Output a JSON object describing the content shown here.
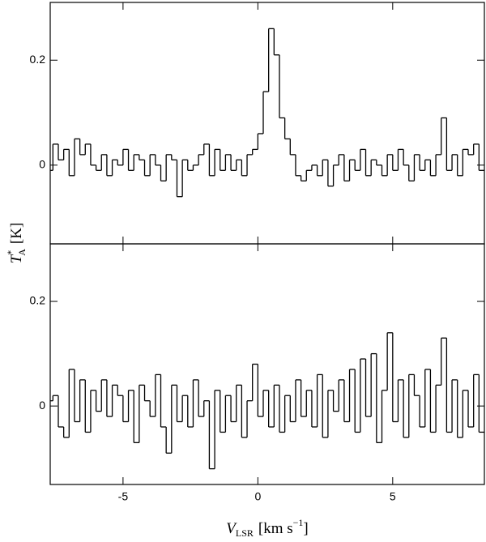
{
  "chart_data": [
    {
      "type": "step",
      "y_label": {
        "symbol": "T",
        "superscript": "*",
        "subscript": "A",
        "unit": "[K]"
      },
      "x": [
        -7.7,
        -7.5,
        -7.3,
        -7.1,
        -6.9,
        -6.7,
        -6.5,
        -6.3,
        -6.1,
        -5.9,
        -5.7,
        -5.5,
        -5.3,
        -5.1,
        -4.9,
        -4.7,
        -4.5,
        -4.3,
        -4.1,
        -3.9,
        -3.7,
        -3.5,
        -3.3,
        -3.1,
        -2.9,
        -2.7,
        -2.5,
        -2.3,
        -2.1,
        -1.9,
        -1.7,
        -1.5,
        -1.3,
        -1.1,
        -0.9,
        -0.7,
        -0.5,
        -0.3,
        -0.1,
        0.1,
        0.3,
        0.5,
        0.7,
        0.9,
        1.1,
        1.3,
        1.5,
        1.7,
        1.9,
        2.1,
        2.3,
        2.5,
        2.7,
        2.9,
        3.1,
        3.3,
        3.5,
        3.7,
        3.9,
        4.1,
        4.3,
        4.5,
        4.7,
        4.9,
        5.1,
        5.3,
        5.5,
        5.7,
        5.9,
        6.1,
        6.3,
        6.5,
        6.7,
        6.9,
        7.1,
        7.3,
        7.5,
        7.7,
        7.9,
        8.1,
        8.3
      ],
      "values": [
        -0.01,
        0.04,
        0.01,
        0.03,
        -0.02,
        0.05,
        0.02,
        0.04,
        0.0,
        -0.01,
        0.02,
        -0.02,
        0.01,
        0.0,
        0.03,
        -0.01,
        0.02,
        0.01,
        -0.02,
        0.02,
        0.0,
        -0.03,
        0.02,
        0.01,
        -0.06,
        0.01,
        -0.01,
        0.0,
        0.02,
        0.04,
        -0.02,
        0.03,
        -0.01,
        0.02,
        -0.01,
        0.01,
        -0.02,
        0.02,
        0.03,
        0.06,
        0.14,
        0.26,
        0.21,
        0.09,
        0.05,
        0.02,
        -0.02,
        -0.03,
        -0.01,
        0.0,
        -0.02,
        0.01,
        -0.04,
        0.0,
        0.02,
        -0.03,
        0.01,
        -0.01,
        0.03,
        -0.02,
        0.01,
        0.0,
        -0.02,
        0.02,
        -0.01,
        0.03,
        0.0,
        -0.03,
        0.02,
        -0.01,
        0.01,
        -0.02,
        0.02,
        0.09,
        -0.01,
        0.02,
        -0.02,
        0.03,
        0.02,
        0.04,
        -0.01
      ],
      "color": "#000000",
      "xlim": [
        -7.7,
        8.4
      ],
      "ylim": [
        -0.15,
        0.31
      ],
      "yticks": [
        0,
        0.2
      ]
    },
    {
      "type": "step",
      "x_label": {
        "symbol": "V",
        "subscript": "LSR",
        "unit_start": "[km s",
        "superscript": "−1",
        "unit_end": "]"
      },
      "x": [
        -7.7,
        -7.5,
        -7.3,
        -7.1,
        -6.9,
        -6.7,
        -6.5,
        -6.3,
        -6.1,
        -5.9,
        -5.7,
        -5.5,
        -5.3,
        -5.1,
        -4.9,
        -4.7,
        -4.5,
        -4.3,
        -4.1,
        -3.9,
        -3.7,
        -3.5,
        -3.3,
        -3.1,
        -2.9,
        -2.7,
        -2.5,
        -2.3,
        -2.1,
        -1.9,
        -1.7,
        -1.5,
        -1.3,
        -1.1,
        -0.9,
        -0.7,
        -0.5,
        -0.3,
        -0.1,
        0.1,
        0.3,
        0.5,
        0.7,
        0.9,
        1.1,
        1.3,
        1.5,
        1.7,
        1.9,
        2.1,
        2.3,
        2.5,
        2.7,
        2.9,
        3.1,
        3.3,
        3.5,
        3.7,
        3.9,
        4.1,
        4.3,
        4.5,
        4.7,
        4.9,
        5.1,
        5.3,
        5.5,
        5.7,
        5.9,
        6.1,
        6.3,
        6.5,
        6.7,
        6.9,
        7.1,
        7.3,
        7.5,
        7.7,
        7.9,
        8.1,
        8.3
      ],
      "values": [
        0.01,
        0.02,
        -0.04,
        -0.06,
        0.07,
        -0.03,
        0.05,
        -0.05,
        0.03,
        -0.01,
        0.05,
        -0.02,
        0.04,
        0.02,
        -0.03,
        0.03,
        -0.07,
        0.04,
        0.01,
        -0.02,
        0.06,
        -0.04,
        -0.09,
        0.04,
        -0.03,
        0.02,
        -0.04,
        0.05,
        -0.02,
        0.01,
        -0.12,
        0.03,
        -0.05,
        0.02,
        -0.03,
        0.04,
        -0.06,
        0.01,
        0.08,
        -0.02,
        0.03,
        -0.04,
        0.04,
        -0.05,
        0.02,
        -0.03,
        0.05,
        -0.02,
        0.03,
        -0.04,
        0.06,
        -0.06,
        0.03,
        -0.01,
        0.05,
        -0.03,
        0.07,
        -0.05,
        0.09,
        -0.02,
        0.1,
        -0.07,
        0.03,
        0.14,
        -0.03,
        0.05,
        -0.06,
        0.06,
        0.02,
        -0.04,
        0.07,
        -0.05,
        0.04,
        0.13,
        -0.05,
        0.05,
        -0.06,
        0.03,
        -0.04,
        0.06,
        -0.05
      ],
      "color": "#000000",
      "xlim": [
        -7.7,
        8.4
      ],
      "ylim": [
        -0.15,
        0.31
      ],
      "xticks": [
        -5,
        0,
        5
      ],
      "yticks": [
        0,
        0.2
      ]
    }
  ]
}
